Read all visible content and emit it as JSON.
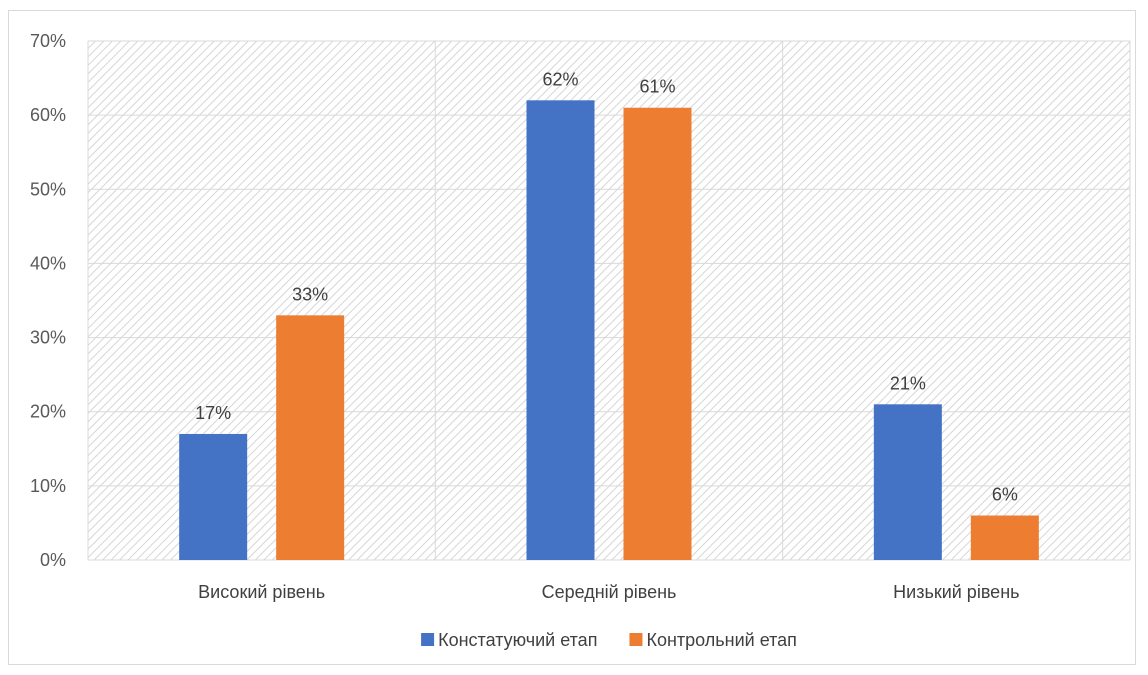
{
  "chart_data": {
    "type": "bar",
    "categories": [
      "Високий рівень",
      "Середній рівень",
      "Низький рівень"
    ],
    "series": [
      {
        "name": "Констатуючий етап",
        "values": [
          17,
          62,
          21
        ],
        "color": "#4472C4"
      },
      {
        "name": "Контрольний етап",
        "values": [
          33,
          61,
          6
        ],
        "color": "#ED7D31"
      }
    ],
    "value_suffix": "%",
    "ylim": [
      0,
      70
    ],
    "yticks": [
      "0%",
      "10%",
      "20%",
      "30%",
      "40%",
      "50%",
      "60%",
      "70%"
    ],
    "ytick_values": [
      0,
      10,
      20,
      30,
      40,
      50,
      60,
      70
    ],
    "grid": true,
    "plot_area_pattern": "diagonal-hatch",
    "legend_position": "bottom",
    "title": "",
    "xlabel": "",
    "ylabel": ""
  }
}
